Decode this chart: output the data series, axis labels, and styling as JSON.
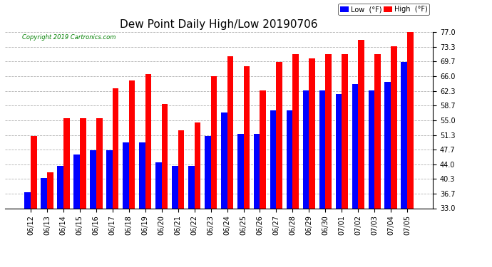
{
  "title": "Dew Point Daily High/Low 20190706",
  "copyright": "Copyright 2019 Cartronics.com",
  "dates": [
    "06/12",
    "06/13",
    "06/14",
    "06/15",
    "06/16",
    "06/17",
    "06/18",
    "06/19",
    "06/20",
    "06/21",
    "06/22",
    "06/23",
    "06/24",
    "06/25",
    "06/26",
    "06/27",
    "06/28",
    "06/29",
    "06/30",
    "07/01",
    "07/02",
    "07/03",
    "07/04",
    "07/05"
  ],
  "low": [
    37.0,
    40.5,
    43.5,
    46.5,
    47.5,
    47.5,
    49.5,
    49.5,
    44.5,
    43.5,
    43.5,
    51.0,
    57.0,
    51.5,
    51.5,
    57.5,
    57.5,
    62.5,
    62.5,
    61.5,
    64.0,
    62.5,
    64.5,
    69.5
  ],
  "high": [
    51.0,
    42.0,
    55.5,
    55.5,
    55.5,
    63.0,
    65.0,
    66.5,
    59.0,
    52.5,
    54.5,
    66.0,
    71.0,
    68.5,
    62.5,
    69.5,
    71.5,
    70.5,
    71.5,
    71.5,
    75.0,
    71.5,
    73.5,
    77.0
  ],
  "ylim": [
    33.0,
    77.0
  ],
  "yticks": [
    33.0,
    36.7,
    40.3,
    44.0,
    47.7,
    51.3,
    55.0,
    58.7,
    62.3,
    66.0,
    69.7,
    73.3,
    77.0
  ],
  "bar_width": 0.38,
  "low_color": "#0000ff",
  "high_color": "#ff0000",
  "background_color": "#ffffff",
  "grid_color": "#aaaaaa",
  "title_fontsize": 11,
  "tick_fontsize": 7,
  "legend_low_label": "Low  (°F)",
  "legend_high_label": "High  (°F)"
}
